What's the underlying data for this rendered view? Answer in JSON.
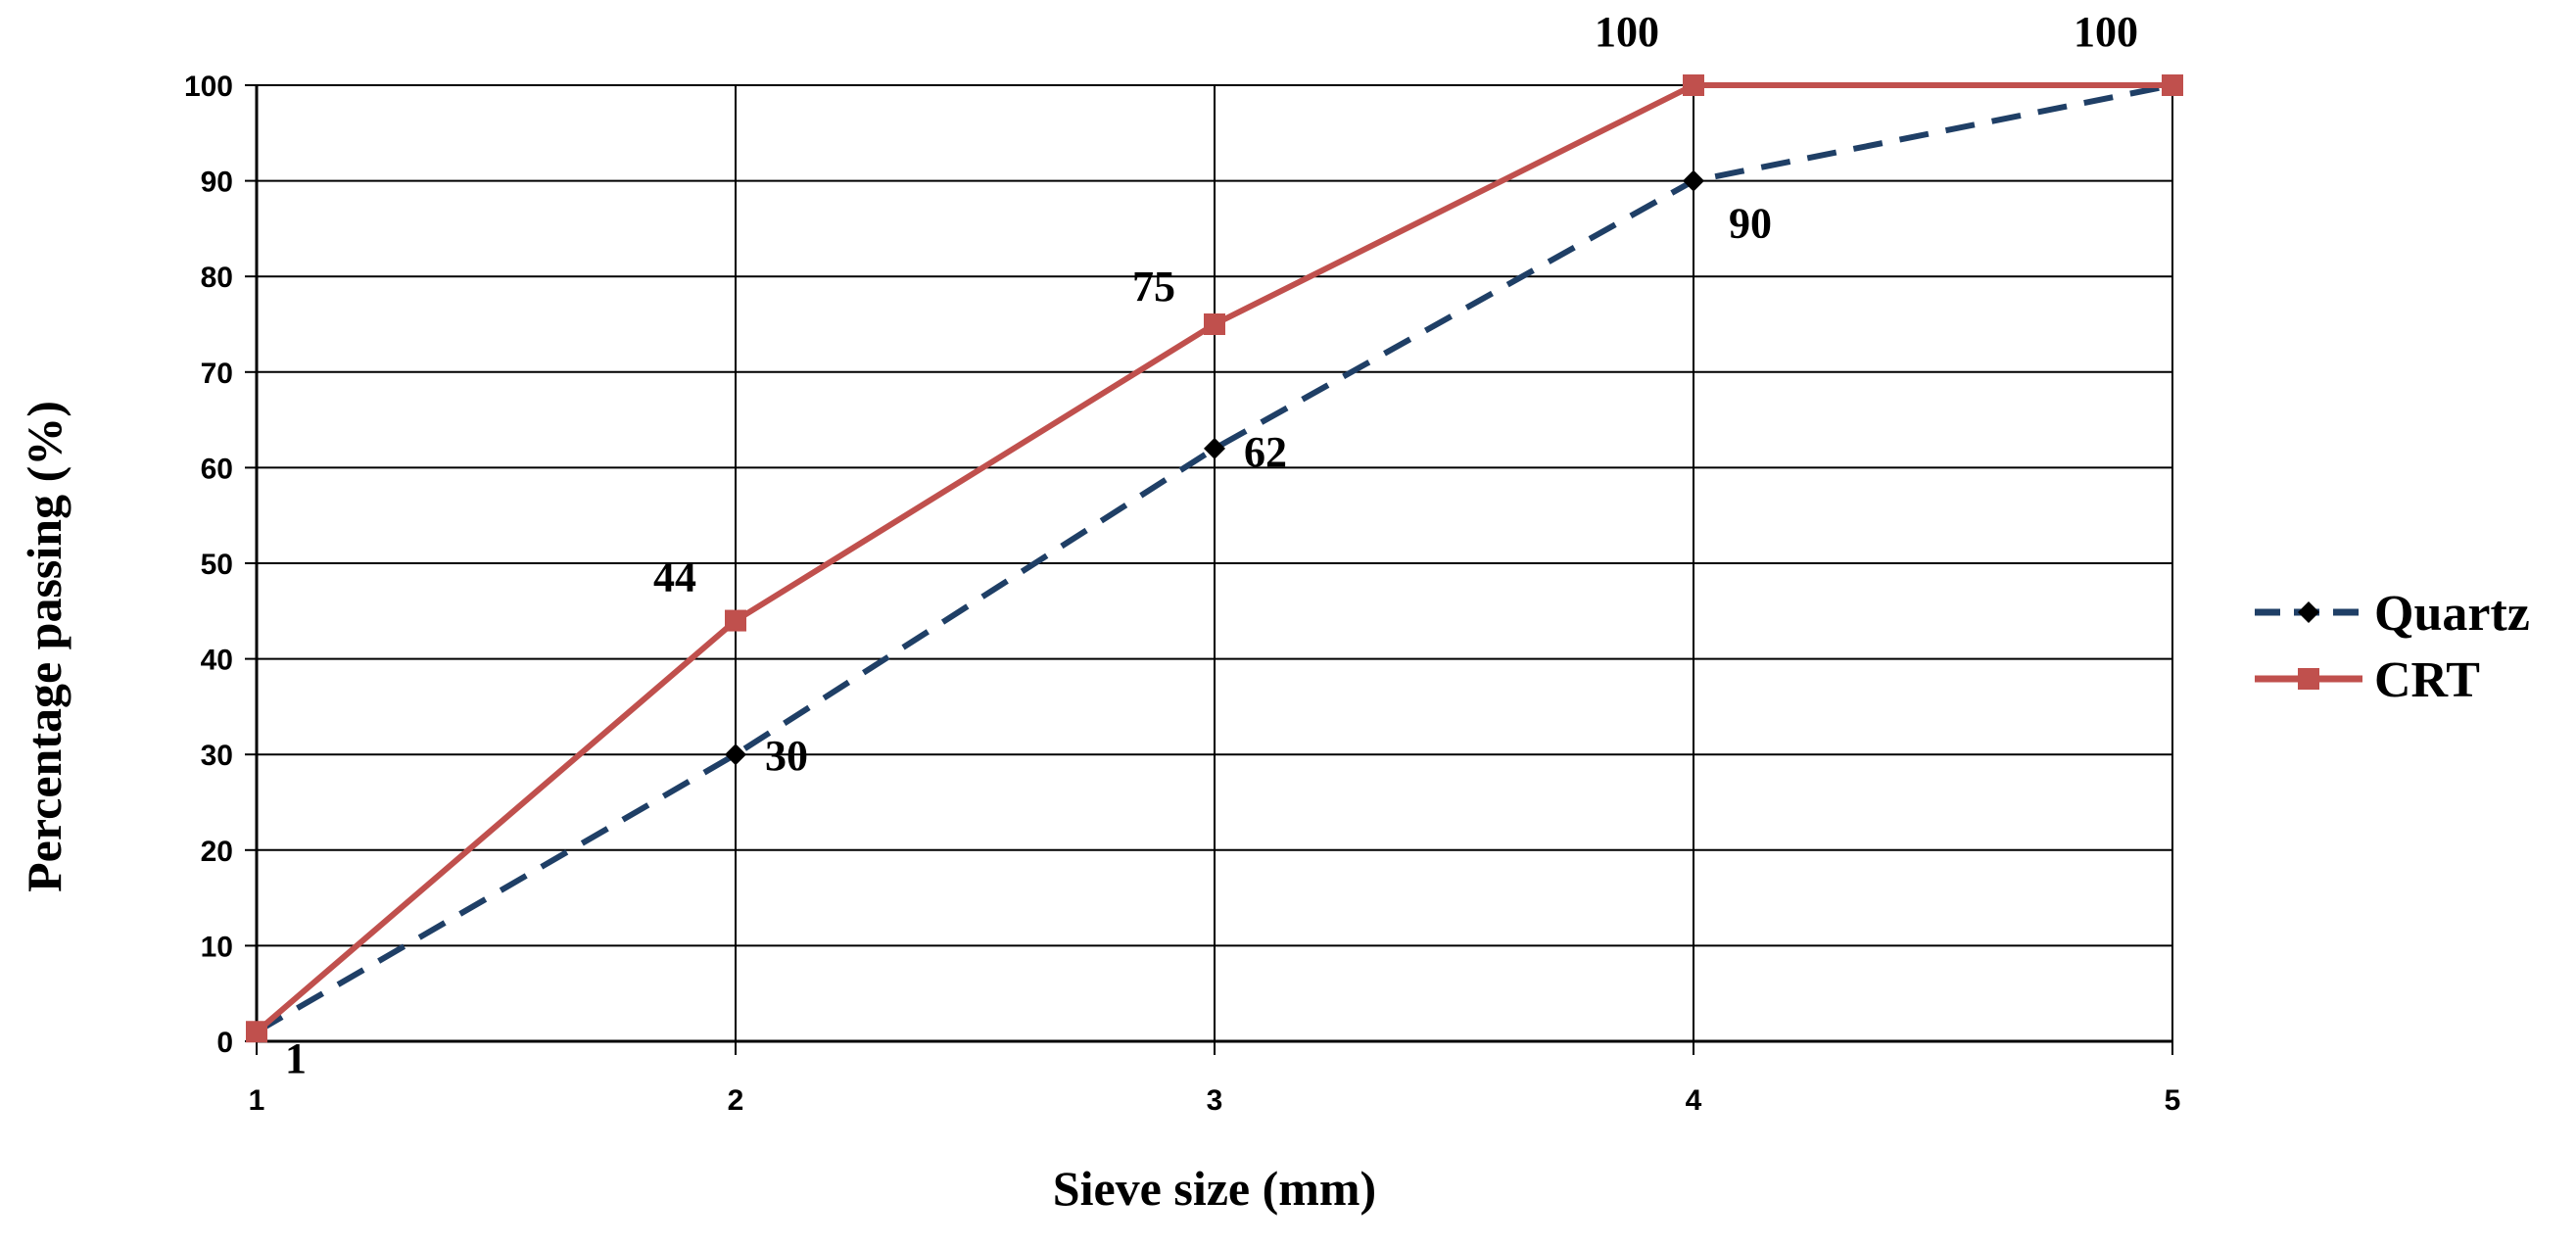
{
  "chart_data": {
    "type": "line",
    "xlabel": "Sieve size (mm)",
    "ylabel": "Percentage passing (%)",
    "x": [
      1,
      2,
      3,
      4,
      5
    ],
    "xlim": [
      1,
      5
    ],
    "ylim": [
      0,
      100
    ],
    "x_ticks": [
      "1",
      "2",
      "3",
      "4",
      "5"
    ],
    "y_ticks": [
      "0",
      "10",
      "20",
      "30",
      "40",
      "50",
      "60",
      "70",
      "80",
      "90",
      "100"
    ],
    "grid": true,
    "legend_position": "right",
    "series": [
      {
        "name": "Quartz",
        "values": [
          1,
          30,
          62,
          90,
          100
        ],
        "data_labels": [
          "1",
          "30",
          "62",
          "90",
          ""
        ],
        "color": "#1F3F66",
        "line_style": "dashed",
        "marker": "diamond"
      },
      {
        "name": "CRT",
        "values": [
          1,
          44,
          75,
          100,
          100
        ],
        "data_labels": [
          "",
          "44",
          "75",
          "100",
          "100"
        ],
        "color": "#C0504D",
        "line_style": "solid",
        "marker": "square"
      }
    ]
  }
}
